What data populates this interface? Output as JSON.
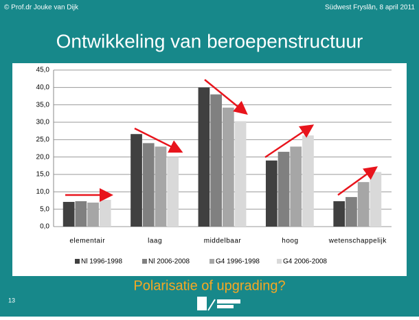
{
  "header": {
    "left": "© Prof.dr Jouke van Dijk",
    "right": "Südwest Fryslân, 8 april 2011"
  },
  "title": "Ontwikkeling van beroepenstructuur",
  "chart_data": {
    "type": "bar",
    "categories": [
      "elementair",
      "laag",
      "middelbaar",
      "hoog",
      "wetenschappelijk"
    ],
    "series": [
      {
        "name": "Nl 1996-1998",
        "color": "#404040",
        "values": [
          7.1,
          26.6,
          40.0,
          19.0,
          7.3
        ]
      },
      {
        "name": "Nl 2006-2008",
        "color": "#808080",
        "values": [
          7.3,
          24.0,
          38.0,
          21.5,
          8.5
        ]
      },
      {
        "name": "G4 1996-1998",
        "color": "#a6a6a6",
        "values": [
          6.9,
          23.0,
          34.2,
          23.0,
          12.8
        ]
      },
      {
        "name": "G4 2006-2008",
        "color": "#d9d9d9",
        "values": [
          7.7,
          20.0,
          30.3,
          26.2,
          15.7
        ]
      }
    ],
    "ylim": [
      0,
      45
    ],
    "yticks": [
      {
        "value": 0,
        "label": "0,0"
      },
      {
        "value": 5,
        "label": "5,0"
      },
      {
        "value": 10,
        "label": "10,0"
      },
      {
        "value": 15,
        "label": "15,0"
      },
      {
        "value": 20,
        "label": "20,0"
      },
      {
        "value": 25,
        "label": "25,0"
      },
      {
        "value": 30,
        "label": "30,0"
      },
      {
        "value": 35,
        "label": "35,0"
      },
      {
        "value": 40,
        "label": "40,0"
      },
      {
        "value": 45,
        "label": "45,0"
      }
    ],
    "grid": true,
    "legend": "bottom"
  },
  "subtitle": "Polarisatie of upgrading?",
  "page_number": "13"
}
